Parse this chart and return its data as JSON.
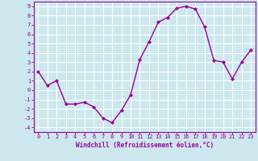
{
  "x": [
    0,
    1,
    2,
    3,
    4,
    5,
    6,
    7,
    8,
    9,
    10,
    11,
    12,
    13,
    14,
    15,
    16,
    17,
    18,
    19,
    20,
    21,
    22,
    23
  ],
  "y": [
    2.0,
    0.5,
    1.0,
    -1.5,
    -1.5,
    -1.3,
    -1.8,
    -3.0,
    -3.5,
    -2.2,
    -0.5,
    3.3,
    5.2,
    7.3,
    7.8,
    8.8,
    9.0,
    8.7,
    6.8,
    3.2,
    3.0,
    1.2,
    3.0,
    4.3
  ],
  "line_color": "#990099",
  "marker": "D",
  "marker_size": 2.0,
  "bg_color": "#cce8ee",
  "grid_color": "#ffffff",
  "xlabel": "Windchill (Refroidissement éolien,°C)",
  "xlim": [
    -0.5,
    23.5
  ],
  "ylim": [
    -4.5,
    9.5
  ],
  "xticks": [
    0,
    1,
    2,
    3,
    4,
    5,
    6,
    7,
    8,
    9,
    10,
    11,
    12,
    13,
    14,
    15,
    16,
    17,
    18,
    19,
    20,
    21,
    22,
    23
  ],
  "yticks": [
    -4,
    -3,
    -2,
    -1,
    0,
    1,
    2,
    3,
    4,
    5,
    6,
    7,
    8,
    9
  ],
  "xlabel_fontsize": 5.5,
  "tick_fontsize": 5.0,
  "line_width": 1.0,
  "spine_color": "#990099"
}
